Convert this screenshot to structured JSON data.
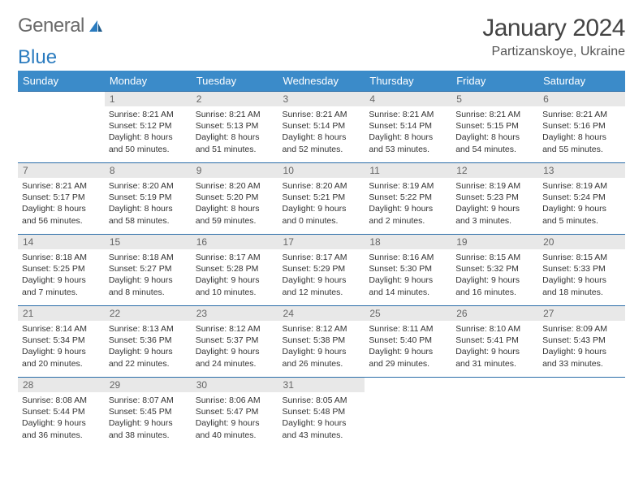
{
  "logo": {
    "text1": "General",
    "text2": "Blue"
  },
  "title": "January 2024",
  "subtitle": "Partizanskoye, Ukraine",
  "colors": {
    "header_bg": "#3b8bc9",
    "header_text": "#ffffff",
    "row_border": "#2a6da8",
    "daynum_bg": "#e8e8e8",
    "daynum_text": "#666666",
    "body_text": "#333333",
    "title_text": "#444444",
    "logo_gray": "#6a6a6a",
    "logo_blue": "#2a7bbf"
  },
  "weekdays": [
    "Sunday",
    "Monday",
    "Tuesday",
    "Wednesday",
    "Thursday",
    "Friday",
    "Saturday"
  ],
  "start_offset": 1,
  "days": [
    {
      "n": 1,
      "sr": "8:21 AM",
      "ss": "5:12 PM",
      "dl": "8 hours and 50 minutes."
    },
    {
      "n": 2,
      "sr": "8:21 AM",
      "ss": "5:13 PM",
      "dl": "8 hours and 51 minutes."
    },
    {
      "n": 3,
      "sr": "8:21 AM",
      "ss": "5:14 PM",
      "dl": "8 hours and 52 minutes."
    },
    {
      "n": 4,
      "sr": "8:21 AM",
      "ss": "5:14 PM",
      "dl": "8 hours and 53 minutes."
    },
    {
      "n": 5,
      "sr": "8:21 AM",
      "ss": "5:15 PM",
      "dl": "8 hours and 54 minutes."
    },
    {
      "n": 6,
      "sr": "8:21 AM",
      "ss": "5:16 PM",
      "dl": "8 hours and 55 minutes."
    },
    {
      "n": 7,
      "sr": "8:21 AM",
      "ss": "5:17 PM",
      "dl": "8 hours and 56 minutes."
    },
    {
      "n": 8,
      "sr": "8:20 AM",
      "ss": "5:19 PM",
      "dl": "8 hours and 58 minutes."
    },
    {
      "n": 9,
      "sr": "8:20 AM",
      "ss": "5:20 PM",
      "dl": "8 hours and 59 minutes."
    },
    {
      "n": 10,
      "sr": "8:20 AM",
      "ss": "5:21 PM",
      "dl": "9 hours and 0 minutes."
    },
    {
      "n": 11,
      "sr": "8:19 AM",
      "ss": "5:22 PM",
      "dl": "9 hours and 2 minutes."
    },
    {
      "n": 12,
      "sr": "8:19 AM",
      "ss": "5:23 PM",
      "dl": "9 hours and 3 minutes."
    },
    {
      "n": 13,
      "sr": "8:19 AM",
      "ss": "5:24 PM",
      "dl": "9 hours and 5 minutes."
    },
    {
      "n": 14,
      "sr": "8:18 AM",
      "ss": "5:25 PM",
      "dl": "9 hours and 7 minutes."
    },
    {
      "n": 15,
      "sr": "8:18 AM",
      "ss": "5:27 PM",
      "dl": "9 hours and 8 minutes."
    },
    {
      "n": 16,
      "sr": "8:17 AM",
      "ss": "5:28 PM",
      "dl": "9 hours and 10 minutes."
    },
    {
      "n": 17,
      "sr": "8:17 AM",
      "ss": "5:29 PM",
      "dl": "9 hours and 12 minutes."
    },
    {
      "n": 18,
      "sr": "8:16 AM",
      "ss": "5:30 PM",
      "dl": "9 hours and 14 minutes."
    },
    {
      "n": 19,
      "sr": "8:15 AM",
      "ss": "5:32 PM",
      "dl": "9 hours and 16 minutes."
    },
    {
      "n": 20,
      "sr": "8:15 AM",
      "ss": "5:33 PM",
      "dl": "9 hours and 18 minutes."
    },
    {
      "n": 21,
      "sr": "8:14 AM",
      "ss": "5:34 PM",
      "dl": "9 hours and 20 minutes."
    },
    {
      "n": 22,
      "sr": "8:13 AM",
      "ss": "5:36 PM",
      "dl": "9 hours and 22 minutes."
    },
    {
      "n": 23,
      "sr": "8:12 AM",
      "ss": "5:37 PM",
      "dl": "9 hours and 24 minutes."
    },
    {
      "n": 24,
      "sr": "8:12 AM",
      "ss": "5:38 PM",
      "dl": "9 hours and 26 minutes."
    },
    {
      "n": 25,
      "sr": "8:11 AM",
      "ss": "5:40 PM",
      "dl": "9 hours and 29 minutes."
    },
    {
      "n": 26,
      "sr": "8:10 AM",
      "ss": "5:41 PM",
      "dl": "9 hours and 31 minutes."
    },
    {
      "n": 27,
      "sr": "8:09 AM",
      "ss": "5:43 PM",
      "dl": "9 hours and 33 minutes."
    },
    {
      "n": 28,
      "sr": "8:08 AM",
      "ss": "5:44 PM",
      "dl": "9 hours and 36 minutes."
    },
    {
      "n": 29,
      "sr": "8:07 AM",
      "ss": "5:45 PM",
      "dl": "9 hours and 38 minutes."
    },
    {
      "n": 30,
      "sr": "8:06 AM",
      "ss": "5:47 PM",
      "dl": "9 hours and 40 minutes."
    },
    {
      "n": 31,
      "sr": "8:05 AM",
      "ss": "5:48 PM",
      "dl": "9 hours and 43 minutes."
    }
  ],
  "labels": {
    "sunrise": "Sunrise:",
    "sunset": "Sunset:",
    "daylight": "Daylight:"
  }
}
